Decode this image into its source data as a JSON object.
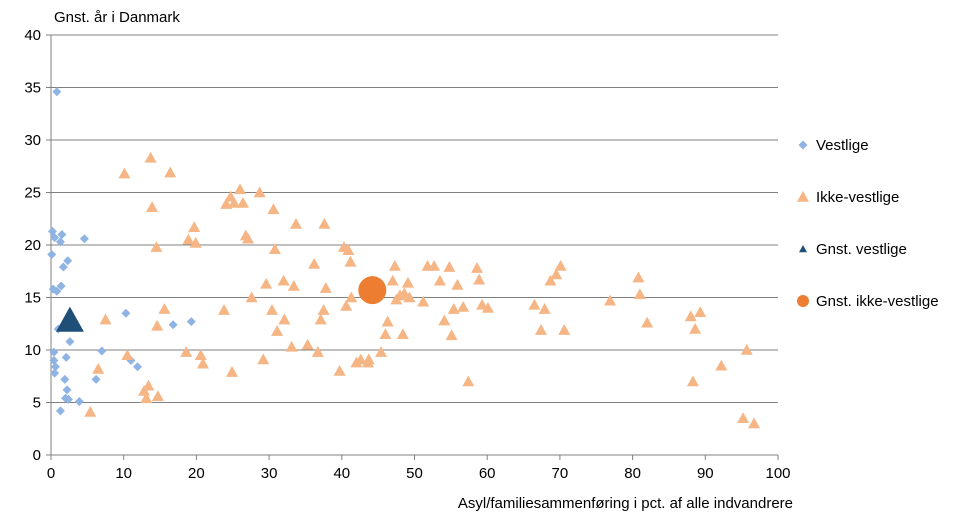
{
  "chart_data": {
    "type": "scatter",
    "title": "",
    "ylabel": "Gnst. år i Danmark",
    "xlabel": "Asyl/familiesammenføring i pct. af alle indvandrere",
    "xlim": [
      0,
      100
    ],
    "ylim": [
      0,
      40
    ],
    "x_ticks": [
      "0",
      "10",
      "20",
      "30",
      "40",
      "50",
      "60",
      "70",
      "80",
      "90",
      "100"
    ],
    "y_ticks": [
      "0",
      "5",
      "10",
      "15",
      "20",
      "25",
      "30",
      "35",
      "40"
    ],
    "grid": "horizontal",
    "legend_position": "right",
    "series": [
      {
        "name": "Vestlige",
        "marker": "diamond",
        "color": "#8fb4e3",
        "points": [
          [
            0.2,
            21.3
          ],
          [
            0.5,
            20.7
          ],
          [
            0.1,
            19.1
          ],
          [
            0.3,
            15.8
          ],
          [
            0.8,
            34.6
          ],
          [
            1.3,
            20.3
          ],
          [
            1.5,
            21.0
          ],
          [
            1.7,
            17.9
          ],
          [
            2.3,
            18.5
          ],
          [
            4.6,
            20.6
          ],
          [
            0.8,
            15.6
          ],
          [
            1.4,
            16.1
          ],
          [
            0.4,
            9.8
          ],
          [
            0.4,
            9.0
          ],
          [
            0.6,
            8.4
          ],
          [
            0.5,
            7.8
          ],
          [
            1.0,
            12.0
          ],
          [
            2.1,
            9.3
          ],
          [
            2.6,
            10.8
          ],
          [
            1.9,
            7.2
          ],
          [
            2.2,
            6.2
          ],
          [
            2.0,
            5.4
          ],
          [
            2.4,
            5.3
          ],
          [
            1.3,
            4.2
          ],
          [
            3.9,
            5.1
          ],
          [
            7.0,
            9.9
          ],
          [
            6.2,
            7.2
          ],
          [
            10.3,
            13.5
          ],
          [
            11.0,
            9.0
          ],
          [
            11.9,
            8.4
          ],
          [
            16.8,
            12.4
          ],
          [
            19.3,
            12.7
          ]
        ]
      },
      {
        "name": "Ikke-vestlige",
        "marker": "triangle",
        "color": "#f5b584",
        "points": [
          [
            10.1,
            26.8
          ],
          [
            13.7,
            28.3
          ],
          [
            16.4,
            26.9
          ],
          [
            13.9,
            23.6
          ],
          [
            14.5,
            19.8
          ],
          [
            7.5,
            12.9
          ],
          [
            10.5,
            9.5
          ],
          [
            14.6,
            12.3
          ],
          [
            15.6,
            13.9
          ],
          [
            12.8,
            6.1
          ],
          [
            13.4,
            6.6
          ],
          [
            13.1,
            5.4
          ],
          [
            14.7,
            5.6
          ],
          [
            5.4,
            4.1
          ],
          [
            6.5,
            8.2
          ],
          [
            18.9,
            20.5
          ],
          [
            19.7,
            21.7
          ],
          [
            19.9,
            20.2
          ],
          [
            18.6,
            9.8
          ],
          [
            20.6,
            9.5
          ],
          [
            20.9,
            8.7
          ],
          [
            23.8,
            13.8
          ],
          [
            24.1,
            23.9
          ],
          [
            24.7,
            24.6
          ],
          [
            25.2,
            24.0
          ],
          [
            26.0,
            25.3
          ],
          [
            26.4,
            24.0
          ],
          [
            26.8,
            20.9
          ],
          [
            27.1,
            20.6
          ],
          [
            28.7,
            25.0
          ],
          [
            27.6,
            15.0
          ],
          [
            24.9,
            7.9
          ],
          [
            29.2,
            9.1
          ],
          [
            29.6,
            16.3
          ],
          [
            30.6,
            23.4
          ],
          [
            30.8,
            19.6
          ],
          [
            30.4,
            13.8
          ],
          [
            31.1,
            11.8
          ],
          [
            32.0,
            16.6
          ],
          [
            32.1,
            12.9
          ],
          [
            33.1,
            10.3
          ],
          [
            33.4,
            16.1
          ],
          [
            33.7,
            22.0
          ],
          [
            35.3,
            10.5
          ],
          [
            36.2,
            18.2
          ],
          [
            37.1,
            12.9
          ],
          [
            37.5,
            13.8
          ],
          [
            37.6,
            22.0
          ],
          [
            37.8,
            15.9
          ],
          [
            36.7,
            9.8
          ],
          [
            39.7,
            8.0
          ],
          [
            40.3,
            19.8
          ],
          [
            40.9,
            19.5
          ],
          [
            41.2,
            18.4
          ],
          [
            40.6,
            14.2
          ],
          [
            41.3,
            15.0
          ],
          [
            42.6,
            9.1
          ],
          [
            42.0,
            8.8
          ],
          [
            43.7,
            9.1
          ],
          [
            43.6,
            8.8
          ],
          [
            45.4,
            9.8
          ],
          [
            46.3,
            12.7
          ],
          [
            46.0,
            11.5
          ],
          [
            47.0,
            16.6
          ],
          [
            47.3,
            18.0
          ],
          [
            47.5,
            14.8
          ],
          [
            48.0,
            15.2
          ],
          [
            48.4,
            11.5
          ],
          [
            48.6,
            15.4
          ],
          [
            49.1,
            16.4
          ],
          [
            49.3,
            15.0
          ],
          [
            51.2,
            14.6
          ],
          [
            51.8,
            18.0
          ],
          [
            52.7,
            18.0
          ],
          [
            53.5,
            16.6
          ],
          [
            54.1,
            12.8
          ],
          [
            54.8,
            17.9
          ],
          [
            55.1,
            11.4
          ],
          [
            55.4,
            13.9
          ],
          [
            55.9,
            16.2
          ],
          [
            56.7,
            14.1
          ],
          [
            57.4,
            7.0
          ],
          [
            58.6,
            17.8
          ],
          [
            58.9,
            16.7
          ],
          [
            59.3,
            14.3
          ],
          [
            60.1,
            14.0
          ],
          [
            66.5,
            14.3
          ],
          [
            67.4,
            11.9
          ],
          [
            67.9,
            13.9
          ],
          [
            68.7,
            16.6
          ],
          [
            69.5,
            17.2
          ],
          [
            70.1,
            18.0
          ],
          [
            70.6,
            11.9
          ],
          [
            76.9,
            14.7
          ],
          [
            80.8,
            16.9
          ],
          [
            81.0,
            15.3
          ],
          [
            82.0,
            12.6
          ],
          [
            88.0,
            13.2
          ],
          [
            88.6,
            12.0
          ],
          [
            89.3,
            13.6
          ],
          [
            88.3,
            7.0
          ],
          [
            92.2,
            8.5
          ],
          [
            95.2,
            3.5
          ],
          [
            95.7,
            10.0
          ],
          [
            96.7,
            3.0
          ]
        ]
      },
      {
        "name": "Gnst. vestlige",
        "marker": "big-triangle",
        "color": "#1f4e79",
        "points": [
          [
            2.6,
            12.8
          ]
        ]
      },
      {
        "name": "Gnst. ikke-vestlige",
        "marker": "big-circle",
        "color": "#ed7d31",
        "points": [
          [
            44.2,
            15.7
          ]
        ]
      }
    ]
  }
}
